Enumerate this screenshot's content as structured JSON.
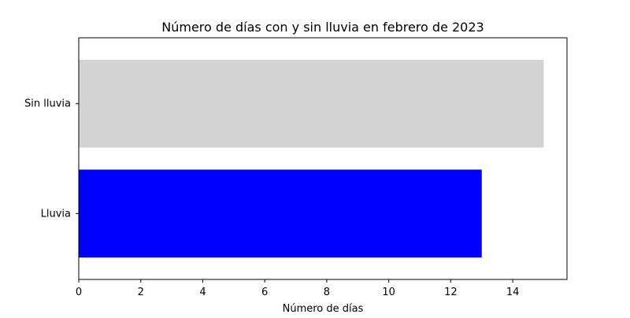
{
  "chart_data": {
    "type": "bar",
    "orientation": "horizontal",
    "title": "Número de días con y sin lluvia en febrero de 2023",
    "xlabel": "Número de días",
    "ylabel": "",
    "categories": [
      "Lluvia",
      "Sin lluvia"
    ],
    "values": [
      13,
      15
    ],
    "colors": [
      "#0000ff",
      "#d3d3d3"
    ],
    "xlim": [
      0,
      15.75
    ],
    "xticks": [
      0,
      2,
      4,
      6,
      8,
      10,
      12,
      14
    ],
    "grid": false,
    "legend": "none"
  }
}
